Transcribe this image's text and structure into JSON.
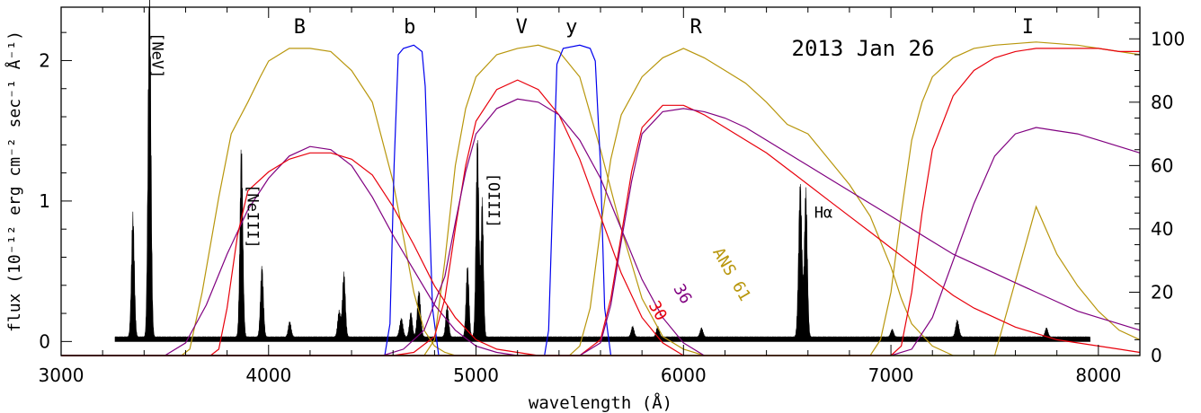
{
  "chart_data": {
    "type": "line",
    "title": "",
    "date_label": "2013 Jan 26",
    "xlabel": "wavelength (Å)",
    "ylabel": "flux (10⁻¹² erg cm⁻² sec⁻¹ Å⁻¹)",
    "xlim": [
      3000,
      8200
    ],
    "ylim_left": [
      -0.1,
      2.38
    ],
    "ylim_right": [
      0,
      110
    ],
    "x_ticks": [
      3000,
      4000,
      5000,
      6000,
      7000,
      8000
    ],
    "y_ticks_left": [
      0,
      1,
      2
    ],
    "y_ticks_right": [
      0,
      20,
      40,
      60,
      80,
      100
    ],
    "grid": false,
    "band_labels": [
      {
        "text": "B",
        "x": 4150
      },
      {
        "text": "b",
        "x": 4680
      },
      {
        "text": "V",
        "x": 5220
      },
      {
        "text": "y",
        "x": 5460
      },
      {
        "text": "R",
        "x": 6060
      },
      {
        "text": "I",
        "x": 7660
      }
    ],
    "line_labels": [
      {
        "text": "[NeV]",
        "x": 3440,
        "y": 2.2
      },
      {
        "text": "[NeIII]",
        "x": 3900,
        "y": 1.12
      },
      {
        "text": "[OIII]",
        "x": 5060,
        "y": 1.2
      },
      {
        "text": "Hα",
        "x": 6630,
        "y": 0.88
      }
    ],
    "curve_labels": [
      {
        "text": "ANS 61",
        "series": "ANS 61",
        "x": 6140,
        "y": 0.64
      },
      {
        "text": "36",
        "series": "36",
        "x": 5950,
        "y": 0.38
      },
      {
        "text": "30",
        "series": "30",
        "x": 5830,
        "y": 0.26
      }
    ],
    "spectrum": {
      "x_range": [
        3260,
        7960
      ],
      "continuum": 0.03,
      "lines": [
        {
          "x": 3346,
          "peak": 0.8,
          "width": 7
        },
        {
          "x": 3426,
          "peak": 2.3,
          "width": 7
        },
        {
          "x": 3869,
          "peak": 1.24,
          "width": 7
        },
        {
          "x": 3968,
          "peak": 0.46,
          "width": 7
        },
        {
          "x": 4102,
          "peak": 0.1,
          "width": 7
        },
        {
          "x": 4340,
          "peak": 0.17,
          "width": 7
        },
        {
          "x": 4363,
          "peak": 0.42,
          "width": 7
        },
        {
          "x": 4640,
          "peak": 0.12,
          "width": 8
        },
        {
          "x": 4686,
          "peak": 0.16,
          "width": 7
        },
        {
          "x": 4725,
          "peak": 0.3,
          "width": 8
        },
        {
          "x": 4861,
          "peak": 0.2,
          "width": 7
        },
        {
          "x": 4959,
          "peak": 0.46,
          "width": 7
        },
        {
          "x": 5007,
          "peak": 1.3,
          "width": 7
        },
        {
          "x": 5030,
          "peak": 0.9,
          "width": 6
        },
        {
          "x": 5755,
          "peak": 0.07,
          "width": 7
        },
        {
          "x": 5876,
          "peak": 0.07,
          "width": 7
        },
        {
          "x": 6087,
          "peak": 0.06,
          "width": 7
        },
        {
          "x": 6563,
          "peak": 1.0,
          "width": 8
        },
        {
          "x": 6590,
          "peak": 0.96,
          "width": 7
        },
        {
          "x": 7006,
          "peak": 0.05,
          "width": 7
        },
        {
          "x": 7320,
          "peak": 0.11,
          "width": 8
        },
        {
          "x": 7750,
          "peak": 0.06,
          "width": 7
        }
      ]
    },
    "series": [
      {
        "name": "B",
        "color": "#b8960c",
        "x": [
          3000,
          3580,
          3620,
          3680,
          3760,
          3820,
          3900,
          3960,
          4000,
          4100,
          4200,
          4300,
          4400,
          4500,
          4600,
          4700,
          4750,
          4800,
          4850,
          4900,
          5000
        ],
        "y": [
          0,
          0,
          2,
          20,
          50,
          70,
          80,
          88,
          93,
          97,
          97,
          96,
          90,
          80,
          55,
          20,
          8,
          3,
          1,
          0,
          0
        ]
      },
      {
        "name": "b",
        "color": "#0000ee",
        "x": [
          3000,
          4560,
          4585,
          4605,
          4625,
          4650,
          4700,
          4740,
          4755,
          4770,
          4790,
          4820,
          5000
        ],
        "y": [
          0,
          0,
          10,
          60,
          95,
          97,
          98,
          96,
          85,
          55,
          15,
          0,
          0
        ]
      },
      {
        "name": "V",
        "color": "#b8960c",
        "x": [
          3000,
          4750,
          4800,
          4850,
          4900,
          4950,
          5000,
          5100,
          5200,
          5300,
          5400,
          5500,
          5600,
          5700,
          5800,
          5900,
          6000,
          6100
        ],
        "y": [
          0,
          0,
          5,
          30,
          60,
          78,
          88,
          95,
          97,
          98,
          96,
          88,
          65,
          40,
          18,
          6,
          2,
          0
        ]
      },
      {
        "name": "y",
        "color": "#0000ee",
        "x": [
          3000,
          5330,
          5350,
          5370,
          5390,
          5420,
          5500,
          5550,
          5575,
          5600,
          5620,
          5650,
          6000
        ],
        "y": [
          0,
          0,
          8,
          50,
          92,
          97,
          98,
          97,
          93,
          60,
          15,
          0,
          0
        ]
      },
      {
        "name": "R",
        "color": "#b8960c",
        "x": [
          3000,
          5450,
          5500,
          5550,
          5600,
          5650,
          5700,
          5800,
          5900,
          6000,
          6100,
          6200,
          6300,
          6400,
          6500,
          6600,
          6700,
          6800,
          6900,
          7000,
          7050,
          7100,
          7200,
          7300
        ],
        "y": [
          0,
          0,
          3,
          15,
          40,
          62,
          76,
          88,
          94,
          97,
          94,
          90,
          86,
          80,
          73,
          70,
          62,
          54,
          44,
          28,
          18,
          10,
          3,
          0
        ]
      },
      {
        "name": "I",
        "color": "#b8960c",
        "x": [
          3000,
          6900,
          6950,
          7000,
          7050,
          7100,
          7150,
          7200,
          7300,
          7400,
          7500,
          7700,
          7900,
          8100,
          8200
        ],
        "y": [
          0,
          0,
          5,
          20,
          45,
          68,
          80,
          88,
          94,
          97,
          98,
          99,
          98,
          96,
          95
        ]
      },
      {
        "name": "ANS 61",
        "color": "#b8960c",
        "x": [
          3000,
          7000,
          7300,
          7500,
          7700,
          7800,
          7900,
          8000,
          8100,
          8200
        ],
        "y": [
          0,
          0,
          0,
          0,
          47,
          32,
          22,
          14,
          8,
          5
        ]
      },
      {
        "name": "36",
        "color": "#800080",
        "x": [
          3000,
          3500,
          3600,
          3700,
          3800,
          3900,
          4000,
          4100,
          4200,
          4300,
          4400,
          4500,
          4600,
          4700,
          4800,
          4900,
          5000,
          5100,
          5200,
          5300,
          5400,
          5500,
          5600,
          5700,
          5800,
          5900,
          5950,
          6000,
          6100,
          6200,
          6300,
          6400,
          6500,
          6600,
          6700,
          6800,
          6900,
          7000,
          7100,
          7200,
          7300,
          7400,
          7500,
          7600,
          7700,
          7800,
          7900,
          8000,
          8100,
          8200
        ],
        "y": [
          0,
          0,
          4,
          16,
          32,
          46,
          56,
          63,
          66,
          65,
          60,
          50,
          38,
          27,
          16,
          8,
          3,
          1,
          0,
          0,
          0,
          0,
          0,
          0,
          0,
          0,
          0,
          0,
          0,
          0,
          0,
          0,
          0,
          0,
          0,
          0,
          0,
          0,
          2,
          12,
          30,
          48,
          63,
          70,
          72,
          71,
          70,
          68,
          66,
          64
        ]
      },
      {
        "name": "30",
        "color": "#e8000b",
        "x": [
          3000,
          3720,
          3760,
          3800,
          3850,
          3900,
          4000,
          4100,
          4200,
          4300,
          4400,
          4500,
          4600,
          4700,
          4800,
          4900,
          5000,
          5100,
          5200,
          5300,
          5400,
          5500,
          5600,
          5700,
          5800,
          5900,
          6000,
          6100,
          6200,
          7000,
          7050,
          7100,
          7150,
          7200,
          7300,
          7400,
          7500,
          7600,
          7700,
          7800,
          7900,
          8000,
          8100,
          8200
        ],
        "y": [
          0,
          0,
          2,
          15,
          38,
          52,
          58,
          62,
          64,
          64,
          62,
          57,
          47,
          35,
          22,
          12,
          5,
          2,
          1,
          0,
          0,
          0,
          0,
          0,
          0,
          0,
          0,
          0,
          0,
          0,
          3,
          20,
          45,
          65,
          82,
          90,
          94,
          96,
          97,
          97,
          97,
          97,
          96,
          96
        ]
      },
      {
        "name": "V-sens-30",
        "color": "#e8000b",
        "x": [
          3000,
          4600,
          4700,
          4800,
          4850,
          4900,
          4950,
          5000,
          5100,
          5200,
          5300,
          5400,
          5500,
          5600,
          5700,
          5800,
          5900,
          6000
        ],
        "y": [
          0,
          0,
          1,
          6,
          18,
          40,
          60,
          74,
          84,
          87,
          84,
          76,
          62,
          44,
          26,
          12,
          4,
          0
        ]
      },
      {
        "name": "V-sens-36",
        "color": "#800080",
        "x": [
          3000,
          4550,
          4650,
          4750,
          4850,
          4900,
          4950,
          5000,
          5100,
          5200,
          5300,
          5400,
          5500,
          5600,
          5700,
          5800,
          5900,
          6000,
          6100
        ],
        "y": [
          0,
          0,
          2,
          8,
          25,
          42,
          58,
          70,
          78,
          81,
          80,
          76,
          68,
          56,
          40,
          24,
          12,
          4,
          0
        ]
      },
      {
        "name": "R-sens-30",
        "color": "#e8000b",
        "x": [
          3000,
          5500,
          5600,
          5650,
          5700,
          5750,
          5800,
          5900,
          6000,
          6100,
          6200,
          6300,
          6400,
          6500,
          6600,
          6700,
          6800,
          6900,
          7000,
          7100,
          7200,
          7300,
          7400,
          7500,
          7600,
          7700,
          7800,
          7900,
          8000,
          8100,
          8200
        ],
        "y": [
          0,
          0,
          5,
          18,
          38,
          58,
          72,
          79,
          79,
          76,
          72,
          68,
          64,
          59,
          54,
          49,
          44,
          39,
          34,
          29,
          24,
          19,
          15,
          12,
          9,
          7,
          5,
          4,
          3,
          2,
          1
        ]
      },
      {
        "name": "R-sens-36",
        "color": "#800080",
        "x": [
          3000,
          5500,
          5600,
          5650,
          5700,
          5750,
          5800,
          5900,
          6000,
          6100,
          6200,
          6300,
          6400,
          6500,
          6600,
          6700,
          6800,
          6900,
          7000,
          7100,
          7200,
          7300,
          7400,
          7500,
          7600,
          7700,
          7800,
          7900,
          8000,
          8100,
          8200
        ],
        "y": [
          0,
          0,
          4,
          16,
          36,
          55,
          70,
          77,
          78,
          77,
          75,
          72,
          68,
          64,
          60,
          56,
          52,
          48,
          44,
          40,
          36,
          32,
          29,
          26,
          23,
          20,
          17,
          14,
          12,
          10,
          8
        ]
      },
      {
        "name": "R-ANS61",
        "color": "#b8960c",
        "x": [
          3000,
          7000,
          7100,
          7200,
          7300,
          7400,
          7500,
          7600,
          7700,
          7800,
          7900,
          8000,
          8100,
          8200
        ],
        "y": [
          0,
          0,
          0,
          0,
          0,
          0,
          0,
          0,
          0,
          0,
          0,
          0,
          0,
          0
        ]
      }
    ]
  }
}
